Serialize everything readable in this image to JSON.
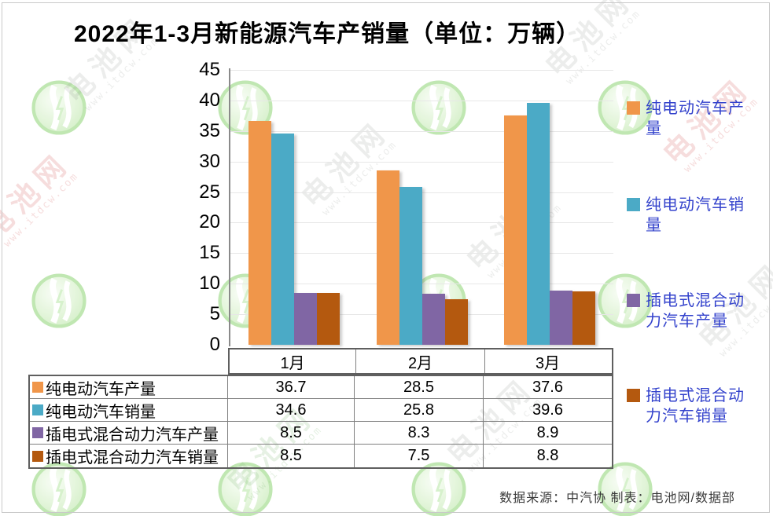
{
  "title": "2022年1-3月新能源汽车产销量（单位：万辆）",
  "footer": "数据来源：中汽协 制表：电池网/数据部",
  "watermark": {
    "brand": "电池网",
    "url": "www.itdcw.com"
  },
  "chart_data": {
    "type": "bar",
    "title": "2022年1-3月新能源汽车产销量（单位：万辆）",
    "unit": "万辆",
    "categories": [
      "1月",
      "2月",
      "3月"
    ],
    "series": [
      {
        "name": "纯电动汽车产量",
        "color": "#F0964A",
        "values": [
          36.7,
          28.5,
          37.6
        ]
      },
      {
        "name": "纯电动汽车销量",
        "color": "#4BAAC6",
        "values": [
          34.6,
          25.8,
          39.6
        ]
      },
      {
        "name": "插电式混合动力汽车产量",
        "color": "#8066A4",
        "values": [
          8.5,
          8.3,
          8.9
        ]
      },
      {
        "name": "插电式混合动力汽车销量",
        "color": "#B4590F",
        "values": [
          8.5,
          7.5,
          8.8
        ]
      }
    ],
    "ylim": [
      0,
      45
    ],
    "ytick_step": 5,
    "yticks": [
      45,
      40,
      35,
      30,
      25,
      20,
      15,
      10,
      5,
      0
    ],
    "grid": true,
    "legend_position": "right",
    "legend_text_color": "#3342CC"
  }
}
